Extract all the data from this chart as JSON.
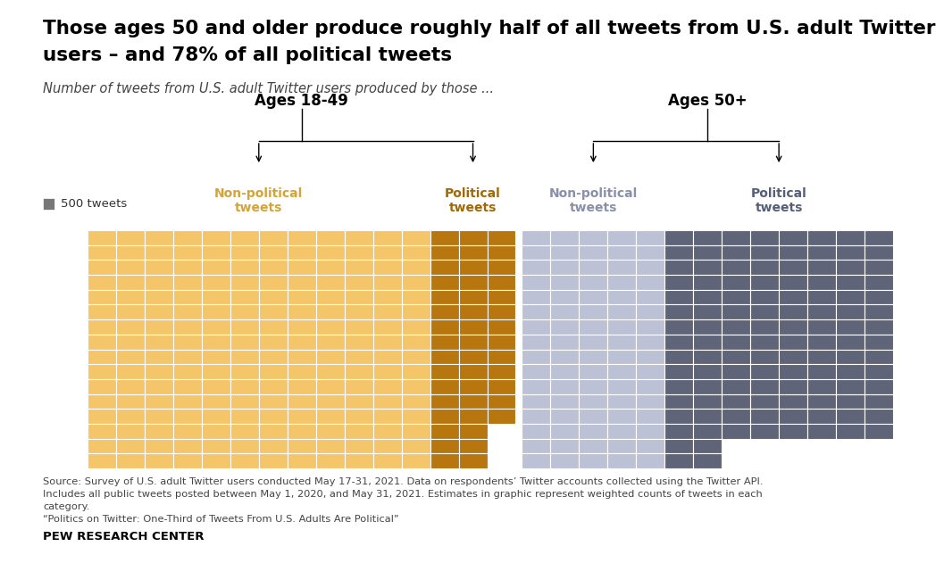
{
  "title_line1": "Those ages 50 and older produce roughly half of all tweets from U.S. adult Twitter",
  "title_line2": "users – and 78% of all political tweets",
  "subtitle": "Number of tweets from U.S. adult Twitter users produced by those ...",
  "legend_label": "500 tweets",
  "legend_color": "#777777",
  "colors": {
    "nonpol_young": "#F5C56A",
    "pol_young": "#B8760E",
    "nonpol_old": "#BDC1D6",
    "pol_old": "#5F6478"
  },
  "section_label_colors": [
    "#D4A43A",
    "#A06808",
    "#8A8FAA",
    "#555E7A"
  ],
  "section_labels": [
    "Non-political\ntweets",
    "Political\ntweets",
    "Non-political\ntweets",
    "Political\ntweets"
  ],
  "group_labels": [
    "Ages 18-49",
    "Ages 50+"
  ],
  "n_rows": 16,
  "ny_nonpol_cols": 12,
  "ny_pol_cols": 3,
  "no_nonpol_cols": 5,
  "no_pol_cols": 8,
  "ny_pol_step_row": 3,
  "ny_pol_step_cols": 2,
  "no_pol_step_row": 2,
  "no_pol_step_cols": 2,
  "source_text": "Source: Survey of U.S. adult Twitter users conducted May 17-31, 2021. Data on respondents’ Twitter accounts collected using the Twitter API.\nIncludes all public tweets posted between May 1, 2020, and May 31, 2021. Estimates in graphic represent weighted counts of tweets in each\ncategory.\n“Politics on Twitter: One-Third of Tweets From U.S. Adults Are Political”",
  "branding": "PEW RESEARCH CENTER",
  "bg": "#FFFFFF"
}
